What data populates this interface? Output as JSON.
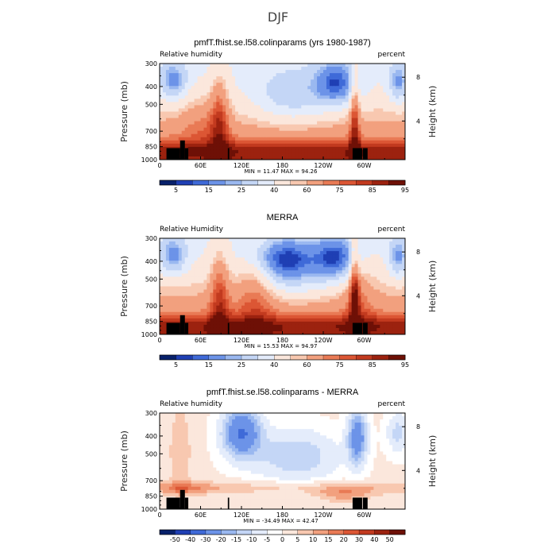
{
  "figure_title": "DJF",
  "colors": {
    "rh_scale": [
      "#08216b",
      "#1f3fb4",
      "#3f6ad8",
      "#6c93e8",
      "#9ab8f0",
      "#c4d6f6",
      "#e4ecfb",
      "#fbe7dc",
      "#f8c8b0",
      "#f2a07e",
      "#e97a55",
      "#dc5634",
      "#c23a1f",
      "#9c220f",
      "#6e1006"
    ],
    "diff_scale": [
      "#08216b",
      "#1f3fb4",
      "#3f6ad8",
      "#6c93e8",
      "#9ab8f0",
      "#c4d6f6",
      "#e4ecfb",
      "#ffffff",
      "#fbe7dc",
      "#f8c8b0",
      "#f2a07e",
      "#e97a55",
      "#dc5634",
      "#c23a1f",
      "#9c220f",
      "#6e1006"
    ],
    "terrain": "#000000"
  },
  "chart_data": [
    {
      "type": "heatmap",
      "name": "panel-model",
      "title": "pmfT.fhist.se.l58.colinparams (yrs 1980-1987)",
      "left_label": "Relative humidity",
      "right_label": "percent",
      "ylabel": "Pressure (mb)",
      "ylabel2": "Height (km)",
      "x_ticks": [
        "0",
        "60E",
        "120E",
        "180",
        "120W",
        "60W"
      ],
      "y_ticks": [
        "300",
        "400",
        "500",
        "700",
        "850",
        "1000"
      ],
      "y2_ticks": [
        "8",
        "4"
      ],
      "min": "11.47",
      "max": "94.26",
      "colorbar_ticks": [
        "5",
        "15",
        "25",
        "40",
        "60",
        "75",
        "85",
        "95"
      ],
      "scale": "rh"
    },
    {
      "type": "heatmap",
      "name": "panel-merra",
      "title": "MERRA",
      "left_label": "Relative Humidity",
      "right_label": "percent",
      "ylabel": "Pressure (mb)",
      "ylabel2": "Height (km)",
      "x_ticks": [
        "0",
        "60E",
        "120E",
        "180",
        "120W",
        "60W"
      ],
      "y_ticks": [
        "300",
        "400",
        "500",
        "700",
        "850",
        "1000"
      ],
      "y2_ticks": [
        "8",
        "4"
      ],
      "min": "15.53",
      "max": "94.97",
      "colorbar_ticks": [
        "5",
        "15",
        "25",
        "40",
        "60",
        "75",
        "85",
        "95"
      ],
      "scale": "rh"
    },
    {
      "type": "heatmap",
      "name": "panel-diff",
      "title": "pmfT.fhist.se.l58.colinparams - MERRA",
      "left_label": "Relative humidity",
      "right_label": "percent",
      "ylabel": "Pressure (mb)",
      "ylabel2": "Height (km)",
      "x_ticks": [
        "0",
        "60E",
        "120E",
        "180",
        "120W",
        "60W"
      ],
      "y_ticks": [
        "300",
        "400",
        "500",
        "700",
        "850",
        "1000"
      ],
      "y2_ticks": [
        "8",
        "4"
      ],
      "min": "-34.49",
      "max": "42.47",
      "colorbar_ticks": [
        "-50",
        "-40",
        "-30",
        "-20",
        "-15",
        "-10",
        "-5",
        "0",
        "5",
        "10",
        "15",
        "20",
        "30",
        "40",
        "50"
      ],
      "scale": "diff"
    }
  ],
  "labels": {
    "min_prefix": "MIN =",
    "max_prefix": "MAX ="
  }
}
